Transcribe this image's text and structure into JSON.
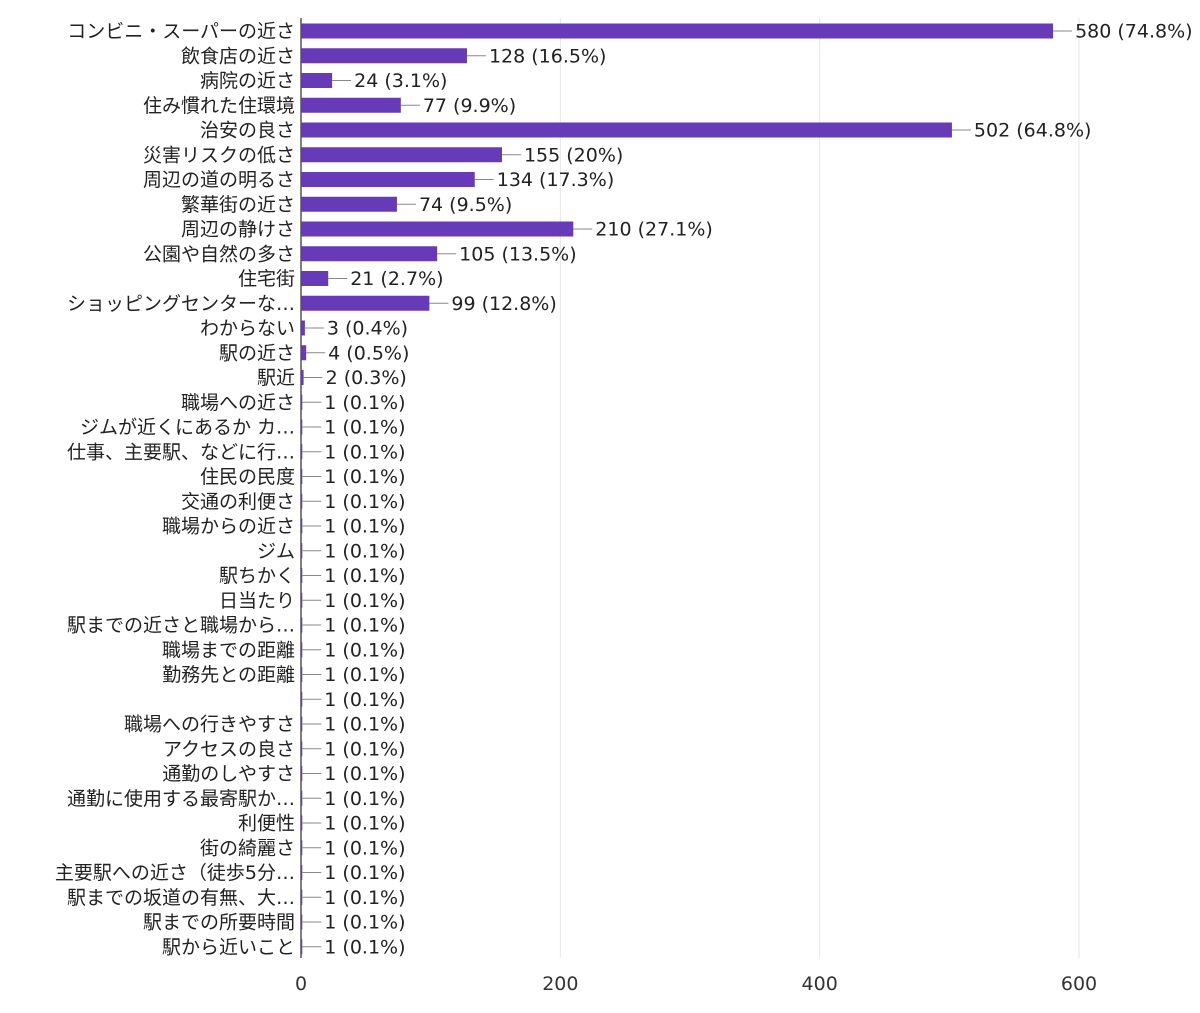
{
  "chart_data": {
    "type": "bar",
    "orientation": "horizontal",
    "categories": [
      "コンビニ・スーパーの近さ",
      "飲食店の近さ",
      "病院の近さ",
      "住み慣れた住環境",
      "治安の良さ",
      "災害リスクの低さ",
      "周辺の道の明るさ",
      "繁華街の近さ",
      "周辺の静けさ",
      "公園や自然の多さ",
      "住宅街",
      "ショッピングセンターな…",
      "わからない",
      "駅の近さ",
      "駅近",
      "職場への近さ",
      "ジムが近くにあるか カ…",
      "仕事、主要駅、などに行…",
      "住民の民度",
      "交通の利便さ",
      "職場からの近さ",
      "ジム",
      "駅ちかく",
      "日当たり",
      "駅までの近さと職場から…",
      "職場までの距離",
      "勤務先との距離",
      "",
      "職場への行きやすさ",
      "アクセスの良さ",
      "通勤のしやすさ",
      "通勤に使用する最寄駅か…",
      "利便性",
      "街の綺麗さ",
      "主要駅への近さ（徒歩5分…",
      "駅までの坂道の有無、大…",
      "駅までの所要時間",
      "駅から近いこと"
    ],
    "values": [
      580,
      128,
      24,
      77,
      502,
      155,
      134,
      74,
      210,
      105,
      21,
      99,
      3,
      4,
      2,
      1,
      1,
      1,
      1,
      1,
      1,
      1,
      1,
      1,
      1,
      1,
      1,
      1,
      1,
      1,
      1,
      1,
      1,
      1,
      1,
      1,
      1,
      1
    ],
    "data_labels": [
      "580 (74.8%)",
      "128 (16.5%)",
      "24 (3.1%)",
      "77 (9.9%)",
      "502 (64.8%)",
      "155 (20%)",
      "134 (17.3%)",
      "74 (9.5%)",
      "210 (27.1%)",
      "105 (13.5%)",
      "21 (2.7%)",
      "99 (12.8%)",
      "3 (0.4%)",
      "4 (0.5%)",
      "2 (0.3%)",
      "1 (0.1%)",
      "1 (0.1%)",
      "1 (0.1%)",
      "1 (0.1%)",
      "1 (0.1%)",
      "1 (0.1%)",
      "1 (0.1%)",
      "1 (0.1%)",
      "1 (0.1%)",
      "1 (0.1%)",
      "1 (0.1%)",
      "1 (0.1%)",
      "1 (0.1%)",
      "1 (0.1%)",
      "1 (0.1%)",
      "1 (0.1%)",
      "1 (0.1%)",
      "1 (0.1%)",
      "1 (0.1%)",
      "1 (0.1%)",
      "1 (0.1%)",
      "1 (0.1%)",
      "1 (0.1%)"
    ],
    "xlim": [
      0,
      600
    ],
    "x_ticks": [
      0,
      200,
      400,
      600
    ],
    "x_tick_labels": [
      "0",
      "200",
      "400",
      "600"
    ],
    "grid": "vertical",
    "bar_color": "#673ab7",
    "grid_color": "#e6e6e6",
    "axis_color": "#555555",
    "leader_color": "#888888",
    "title": "",
    "xlabel": "",
    "ylabel": ""
  }
}
